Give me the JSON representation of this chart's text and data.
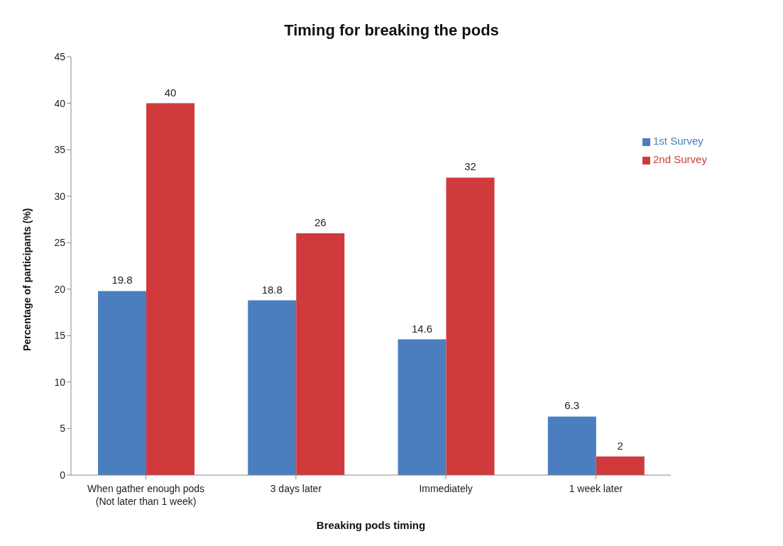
{
  "chart_data": {
    "type": "bar",
    "title": "Timing for breaking the pods",
    "xlabel": "Breaking pods timing",
    "ylabel": "Percentage of participants (%)",
    "categories": [
      "When gather enough pods\n(Not later than 1 week)",
      "3 days later",
      "Immediately",
      "1 week later"
    ],
    "series": [
      {
        "name": "1st Survey",
        "color": "#4a7ebf",
        "values": [
          19.8,
          18.8,
          14.6,
          6.3
        ]
      },
      {
        "name": "2nd Survey",
        "color": "#d03a3c",
        "values": [
          40,
          26,
          32,
          2
        ]
      }
    ],
    "ylim": [
      0,
      45
    ],
    "yticks": [
      0,
      5,
      10,
      15,
      20,
      25,
      30,
      35,
      40,
      45
    ],
    "grid": false,
    "legend": "top right",
    "data_labels": true
  }
}
